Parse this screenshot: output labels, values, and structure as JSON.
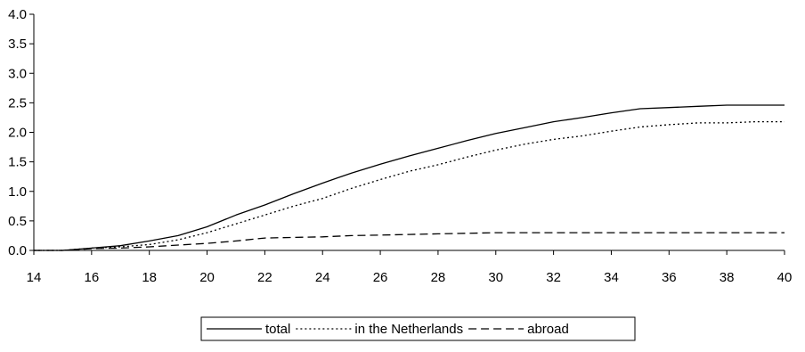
{
  "chart_data": {
    "type": "line",
    "title": "",
    "xlabel": "",
    "ylabel": "",
    "xlim": [
      14,
      40
    ],
    "ylim": [
      0,
      4
    ],
    "x_ticks": [
      14,
      16,
      18,
      20,
      22,
      24,
      26,
      28,
      30,
      32,
      34,
      36,
      38,
      40
    ],
    "y_ticks": [
      "0.0",
      "0.5",
      "1.0",
      "1.5",
      "2.0",
      "2.5",
      "3.0",
      "3.5",
      "4.0"
    ],
    "grid": false,
    "legend_position": "bottom",
    "x": [
      14,
      15,
      16,
      17,
      18,
      19,
      20,
      21,
      22,
      23,
      24,
      25,
      26,
      27,
      28,
      29,
      30,
      31,
      32,
      33,
      34,
      35,
      36,
      37,
      38,
      39,
      40
    ],
    "series": [
      {
        "name": "total",
        "style": "solid",
        "values": [
          0.0,
          0.0,
          0.04,
          0.08,
          0.16,
          0.25,
          0.4,
          0.6,
          0.77,
          0.96,
          1.14,
          1.31,
          1.46,
          1.6,
          1.73,
          1.86,
          1.98,
          2.08,
          2.18,
          2.25,
          2.33,
          2.4,
          2.42,
          2.44,
          2.46,
          2.46,
          2.46
        ]
      },
      {
        "name": "in the Netherlands",
        "style": "dotted",
        "values": [
          0.0,
          0.0,
          0.04,
          0.06,
          0.1,
          0.18,
          0.3,
          0.45,
          0.6,
          0.75,
          0.88,
          1.05,
          1.2,
          1.34,
          1.45,
          1.58,
          1.7,
          1.8,
          1.88,
          1.94,
          2.02,
          2.09,
          2.13,
          2.16,
          2.16,
          2.18,
          2.18
        ]
      },
      {
        "name": "abroad",
        "style": "dashed",
        "values": [
          0.0,
          0.0,
          0.03,
          0.04,
          0.06,
          0.09,
          0.12,
          0.16,
          0.21,
          0.22,
          0.23,
          0.25,
          0.26,
          0.27,
          0.28,
          0.29,
          0.3,
          0.3,
          0.3,
          0.3,
          0.3,
          0.3,
          0.3,
          0.3,
          0.3,
          0.3,
          0.3
        ]
      }
    ],
    "colors": {
      "line": "#000000",
      "axis": "#000000",
      "background": "#ffffff"
    }
  }
}
